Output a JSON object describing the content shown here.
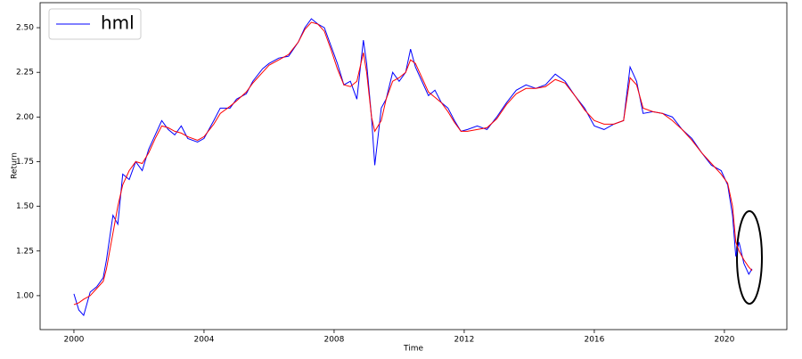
{
  "chart_data": {
    "type": "line",
    "x_label": "Time",
    "y_label": "Return",
    "y_label_color": "#0000ff",
    "legend": "upper left",
    "x": [
      2000.0,
      2000.15,
      2000.3,
      2000.5,
      2000.7,
      2000.9,
      2001.0,
      2001.2,
      2001.35,
      2001.5,
      2001.7,
      2001.9,
      2002.1,
      2002.3,
      2002.5,
      2002.7,
      2002.9,
      2003.1,
      2003.3,
      2003.5,
      2003.8,
      2004.0,
      2004.3,
      2004.5,
      2004.8,
      2005.0,
      2005.3,
      2005.5,
      2005.8,
      2006.0,
      2006.3,
      2006.6,
      2006.9,
      2007.1,
      2007.3,
      2007.5,
      2007.7,
      2007.9,
      2008.1,
      2008.3,
      2008.5,
      2008.7,
      2008.9,
      2009.0,
      2009.15,
      2009.25,
      2009.45,
      2009.6,
      2009.8,
      2010.0,
      2010.2,
      2010.35,
      2010.5,
      2010.7,
      2010.9,
      2011.1,
      2011.3,
      2011.5,
      2011.7,
      2011.9,
      2012.1,
      2012.4,
      2012.7,
      2013.0,
      2013.3,
      2013.6,
      2013.9,
      2014.2,
      2014.5,
      2014.8,
      2015.1,
      2015.4,
      2015.7,
      2016.0,
      2016.3,
      2016.6,
      2016.9,
      2017.1,
      2017.3,
      2017.5,
      2017.8,
      2018.1,
      2018.4,
      2018.7,
      2019.0,
      2019.3,
      2019.6,
      2019.9,
      2020.1,
      2020.25,
      2020.35,
      2020.45,
      2020.6,
      2020.75,
      2020.85
    ],
    "series": [
      {
        "name": "hml",
        "color": "#0000ff",
        "values": [
          1.01,
          0.92,
          0.89,
          1.02,
          1.05,
          1.1,
          1.2,
          1.45,
          1.4,
          1.68,
          1.65,
          1.75,
          1.7,
          1.82,
          1.9,
          1.98,
          1.93,
          1.9,
          1.95,
          1.88,
          1.86,
          1.88,
          1.98,
          2.05,
          2.05,
          2.1,
          2.13,
          2.2,
          2.27,
          2.3,
          2.33,
          2.34,
          2.42,
          2.5,
          2.55,
          2.52,
          2.5,
          2.4,
          2.3,
          2.18,
          2.2,
          2.1,
          2.43,
          2.3,
          2.0,
          1.73,
          2.05,
          2.1,
          2.25,
          2.2,
          2.25,
          2.38,
          2.28,
          2.2,
          2.12,
          2.15,
          2.08,
          2.05,
          1.98,
          1.92,
          1.93,
          1.95,
          1.93,
          2.0,
          2.08,
          2.15,
          2.18,
          2.16,
          2.18,
          2.24,
          2.2,
          2.12,
          2.05,
          1.95,
          1.93,
          1.96,
          1.98,
          2.28,
          2.2,
          2.02,
          2.03,
          2.02,
          2.0,
          1.93,
          1.88,
          1.8,
          1.73,
          1.7,
          1.62,
          1.45,
          1.22,
          1.3,
          1.18,
          1.12,
          1.15
        ]
      },
      {
        "color": "#ff0000",
        "values": [
          0.95,
          0.96,
          0.98,
          1.0,
          1.04,
          1.08,
          1.15,
          1.35,
          1.5,
          1.62,
          1.7,
          1.75,
          1.74,
          1.8,
          1.88,
          1.95,
          1.94,
          1.92,
          1.91,
          1.89,
          1.87,
          1.89,
          1.96,
          2.02,
          2.06,
          2.09,
          2.14,
          2.19,
          2.25,
          2.29,
          2.32,
          2.35,
          2.42,
          2.49,
          2.53,
          2.52,
          2.48,
          2.38,
          2.27,
          2.18,
          2.17,
          2.2,
          2.36,
          2.25,
          2.0,
          1.92,
          1.98,
          2.1,
          2.2,
          2.22,
          2.25,
          2.32,
          2.3,
          2.22,
          2.14,
          2.11,
          2.08,
          2.03,
          1.97,
          1.92,
          1.92,
          1.93,
          1.94,
          1.99,
          2.07,
          2.13,
          2.16,
          2.16,
          2.17,
          2.21,
          2.19,
          2.12,
          2.04,
          1.98,
          1.96,
          1.96,
          1.98,
          2.22,
          2.18,
          2.05,
          2.03,
          2.02,
          1.98,
          1.93,
          1.87,
          1.8,
          1.74,
          1.68,
          1.63,
          1.5,
          1.3,
          1.25,
          1.2,
          1.16,
          1.14
        ]
      }
    ],
    "xlim": [
      1998.96,
      2021.92
    ],
    "xticks": [
      2000,
      2004,
      2008,
      2012,
      2016,
      2020
    ],
    "ylim": [
      0.81,
      2.64
    ],
    "yticks": [
      {
        "value": 1,
        "label": "1.00"
      },
      {
        "value": 1.25,
        "label": "1.25"
      },
      {
        "value": 1.5,
        "label": "1.50"
      },
      {
        "value": 1.75,
        "label": "1.75"
      },
      {
        "value": 2,
        "label": "2.00"
      },
      {
        "value": 2.25,
        "label": "2.25"
      },
      {
        "value": 2.5,
        "label": "2.50"
      }
    ]
  }
}
